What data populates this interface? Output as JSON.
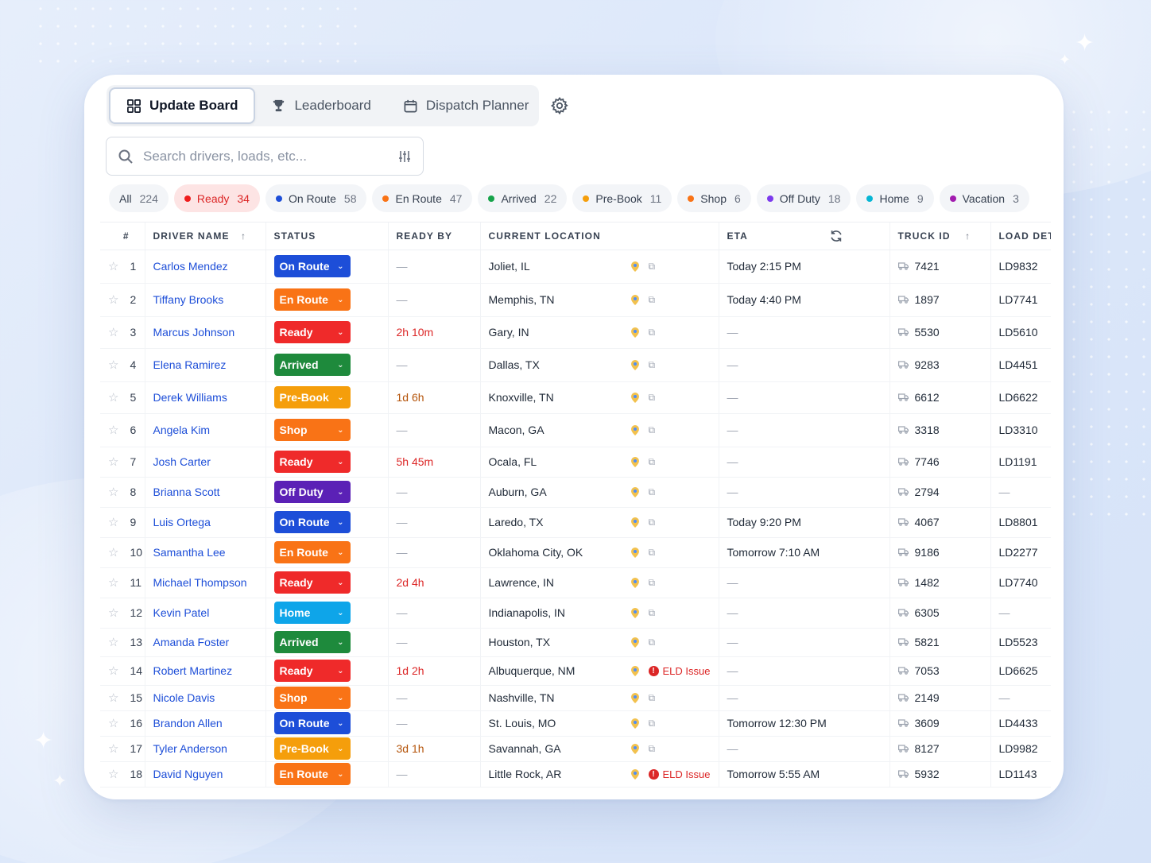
{
  "tabs": [
    {
      "label": "Update Board",
      "icon": "grid-icon",
      "active": true
    },
    {
      "label": "Leaderboard",
      "icon": "trophy-icon",
      "active": false
    },
    {
      "label": "Dispatch Planner",
      "icon": "calendar-icon",
      "active": false
    }
  ],
  "search": {
    "placeholder": "Search drivers, loads, etc..."
  },
  "filters": [
    {
      "label": "All",
      "count": "224",
      "color": null
    },
    {
      "label": "Ready",
      "count": "34",
      "color": "#ef1c1c",
      "selected": true
    },
    {
      "label": "On Route",
      "count": "58",
      "color": "#1d4ed8"
    },
    {
      "label": "En Route",
      "count": "47",
      "color": "#f97316"
    },
    {
      "label": "Arrived",
      "count": "22",
      "color": "#16a34a"
    },
    {
      "label": "Pre-Book",
      "count": "11",
      "color": "#f59e0b"
    },
    {
      "label": "Shop",
      "count": "6",
      "color": "#f97316"
    },
    {
      "label": "Off Duty",
      "count": "18",
      "color": "#7c3aed"
    },
    {
      "label": "Home",
      "count": "9",
      "color": "#06b6d4"
    },
    {
      "label": "Vacation",
      "count": "3",
      "color": "#a21caf"
    }
  ],
  "columns": {
    "idx": "#",
    "driver": "DRIVER NAME",
    "status": "STATUS",
    "ready_by": "READY BY",
    "location": "CURRENT LOCATION",
    "eta": "ETA",
    "truck": "TRUCK ID",
    "load": "LOAD DETAILS"
  },
  "status_colors": {
    "On Route": "#1d4ed8",
    "En Route": "#f97316",
    "Ready": "#ef2a2a",
    "Arrived": "#1e8a3c",
    "Pre-Book": "#f59e0b",
    "Shop": "#f97316",
    "Off Duty": "#5b21b6",
    "Home": "#0ea5e9"
  },
  "rows": [
    {
      "n": "1",
      "driver": "Carlos Mendez",
      "status": "On Route",
      "ready_by": "—",
      "location": "Joliet, IL",
      "eld": "",
      "eta": "Today 2:15 PM",
      "truck": "7421",
      "load": "LD9832"
    },
    {
      "n": "2",
      "driver": "Tiffany Brooks",
      "status": "En Route",
      "ready_by": "—",
      "location": "Memphis, TN",
      "eld": "",
      "eta": "Today 4:40 PM",
      "truck": "1897",
      "load": "LD7741"
    },
    {
      "n": "3",
      "driver": "Marcus Johnson",
      "status": "Ready",
      "ready_by": "2h 10m",
      "location": "Gary, IN",
      "eld": "",
      "eta": "—",
      "truck": "5530",
      "load": "LD5610"
    },
    {
      "n": "4",
      "driver": "Elena Ramirez",
      "status": "Arrived",
      "ready_by": "—",
      "location": "Dallas, TX",
      "eld": "",
      "eta": "—",
      "truck": "9283",
      "load": "LD4451"
    },
    {
      "n": "5",
      "driver": "Derek Williams",
      "status": "Pre-Book",
      "ready_by": "1d 6h",
      "location": "Knoxville, TN",
      "eld": "",
      "eta": "—",
      "truck": "6612",
      "load": "LD6622"
    },
    {
      "n": "6",
      "driver": "Angela Kim",
      "status": "Shop",
      "ready_by": "—",
      "location": "Macon, GA",
      "eld": "",
      "eta": "—",
      "truck": "3318",
      "load": "LD3310"
    },
    {
      "n": "7",
      "driver": "Josh Carter",
      "status": "Ready",
      "ready_by": "5h 45m",
      "location": "Ocala, FL",
      "eld": "",
      "eta": "—",
      "truck": "7746",
      "load": "LD1191"
    },
    {
      "n": "8",
      "driver": "Brianna Scott",
      "status": "Off Duty",
      "ready_by": "—",
      "location": "Auburn, GA",
      "eld": "",
      "eta": "—",
      "truck": "2794",
      "load": "—"
    },
    {
      "n": "9",
      "driver": "Luis Ortega",
      "status": "On Route",
      "ready_by": "—",
      "location": "Laredo, TX",
      "eld": "",
      "eta": "Today 9:20 PM",
      "truck": "4067",
      "load": "LD8801"
    },
    {
      "n": "10",
      "driver": "Samantha Lee",
      "status": "En Route",
      "ready_by": "—",
      "location": "Oklahoma City, OK",
      "eld": "",
      "eta": "Tomorrow 7:10 AM",
      "truck": "9186",
      "load": "LD2277"
    },
    {
      "n": "11",
      "driver": "Michael Thompson",
      "status": "Ready",
      "ready_by": "2d 4h",
      "location": "Lawrence, IN",
      "eld": "",
      "eta": "—",
      "truck": "1482",
      "load": "LD7740"
    },
    {
      "n": "12",
      "driver": "Kevin Patel",
      "status": "Home",
      "ready_by": "—",
      "location": "Indianapolis, IN",
      "eld": "",
      "eta": "—",
      "truck": "6305",
      "load": "—"
    },
    {
      "n": "13",
      "driver": "Amanda Foster",
      "status": "Arrived",
      "ready_by": "—",
      "location": "Houston, TX",
      "eld": "",
      "eta": "—",
      "truck": "5821",
      "load": "LD5523"
    },
    {
      "n": "14",
      "driver": "Robert Martinez",
      "status": "Ready",
      "ready_by": "1d 2h",
      "location": "Albuquerque, NM",
      "eld": "ELD Issue",
      "eta": "—",
      "truck": "7053",
      "load": "LD6625"
    },
    {
      "n": "15",
      "driver": "Nicole Davis",
      "status": "Shop",
      "ready_by": "—",
      "location": "Nashville, TN",
      "eld": "",
      "eta": "—",
      "truck": "2149",
      "load": "—"
    },
    {
      "n": "16",
      "driver": "Brandon Allen",
      "status": "On Route",
      "ready_by": "—",
      "location": "St. Louis, MO",
      "eld": "",
      "eta": "Tomorrow 12:30 PM",
      "truck": "3609",
      "load": "LD4433"
    },
    {
      "n": "17",
      "driver": "Tyler Anderson",
      "status": "Pre-Book",
      "ready_by": "3d 1h",
      "location": "Savannah, GA",
      "eld": "",
      "eta": "—",
      "truck": "8127",
      "load": "LD9982"
    },
    {
      "n": "18",
      "driver": "David Nguyen",
      "status": "En Route",
      "ready_by": "—",
      "location": "Little Rock, AR",
      "eld": "ELD Issue",
      "eta": "Tomorrow 5:55 AM",
      "truck": "5932",
      "load": "LD1143"
    }
  ]
}
